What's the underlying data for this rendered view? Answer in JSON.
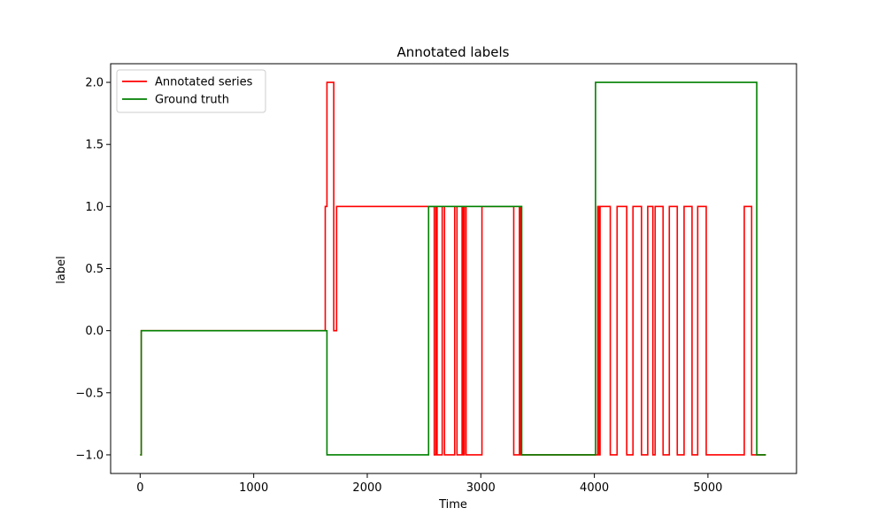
{
  "chart_data": {
    "type": "line",
    "step": true,
    "title": "Annotated labels",
    "xlabel": "Time",
    "ylabel": "label",
    "xlim": [
      -260,
      5780
    ],
    "ylim": [
      -1.15,
      2.15
    ],
    "xticks": [
      0,
      1000,
      2000,
      3000,
      4000,
      5000
    ],
    "xtick_labels": [
      "0",
      "1000",
      "2000",
      "3000",
      "4000",
      "5000"
    ],
    "yticks": [
      -1.0,
      -0.5,
      0.0,
      0.5,
      1.0,
      1.5,
      2.0
    ],
    "ytick_labels": [
      "−1.0",
      "−0.5",
      "0.0",
      "0.5",
      "1.0",
      "1.5",
      "2.0"
    ],
    "grid": false,
    "legend_position": "top-left",
    "series": [
      {
        "name": "Annotated series",
        "color": "#ff0000",
        "points": [
          [
            0,
            -1
          ],
          [
            10,
            -1
          ],
          [
            10,
            0
          ],
          [
            1630,
            0
          ],
          [
            1630,
            1
          ],
          [
            1645,
            1
          ],
          [
            1645,
            2
          ],
          [
            1705,
            2
          ],
          [
            1705,
            0
          ],
          [
            1730,
            0
          ],
          [
            1730,
            1
          ],
          [
            2590,
            1
          ],
          [
            2590,
            -1
          ],
          [
            2605,
            -1
          ],
          [
            2605,
            1
          ],
          [
            2615,
            1
          ],
          [
            2615,
            -1
          ],
          [
            2660,
            -1
          ],
          [
            2660,
            1
          ],
          [
            2680,
            1
          ],
          [
            2680,
            -1
          ],
          [
            2770,
            -1
          ],
          [
            2770,
            1
          ],
          [
            2790,
            1
          ],
          [
            2790,
            -1
          ],
          [
            2835,
            -1
          ],
          [
            2835,
            1
          ],
          [
            2845,
            1
          ],
          [
            2845,
            -1
          ],
          [
            2855,
            -1
          ],
          [
            2855,
            1
          ],
          [
            2870,
            1
          ],
          [
            2870,
            -1
          ],
          [
            3010,
            -1
          ],
          [
            3010,
            1
          ],
          [
            3290,
            1
          ],
          [
            3290,
            -1
          ],
          [
            3340,
            -1
          ],
          [
            3340,
            1
          ],
          [
            3350,
            1
          ],
          [
            3350,
            -1
          ],
          [
            4030,
            -1
          ],
          [
            4030,
            1
          ],
          [
            4040,
            1
          ],
          [
            4040,
            -1
          ],
          [
            4050,
            -1
          ],
          [
            4050,
            1
          ],
          [
            4140,
            1
          ],
          [
            4140,
            -1
          ],
          [
            4200,
            -1
          ],
          [
            4200,
            1
          ],
          [
            4285,
            1
          ],
          [
            4285,
            -1
          ],
          [
            4340,
            -1
          ],
          [
            4340,
            1
          ],
          [
            4415,
            1
          ],
          [
            4415,
            -1
          ],
          [
            4470,
            -1
          ],
          [
            4470,
            1
          ],
          [
            4515,
            1
          ],
          [
            4515,
            -1
          ],
          [
            4535,
            -1
          ],
          [
            4535,
            1
          ],
          [
            4605,
            1
          ],
          [
            4605,
            -1
          ],
          [
            4660,
            -1
          ],
          [
            4660,
            1
          ],
          [
            4730,
            1
          ],
          [
            4730,
            -1
          ],
          [
            4790,
            -1
          ],
          [
            4790,
            1
          ],
          [
            4860,
            1
          ],
          [
            4860,
            -1
          ],
          [
            4910,
            -1
          ],
          [
            4910,
            1
          ],
          [
            4985,
            1
          ],
          [
            4985,
            -1
          ],
          [
            5320,
            -1
          ],
          [
            5320,
            1
          ],
          [
            5385,
            1
          ],
          [
            5385,
            -1
          ],
          [
            5510,
            -1
          ]
        ]
      },
      {
        "name": "Ground truth",
        "color": "#008000",
        "points": [
          [
            0,
            -1
          ],
          [
            10,
            -1
          ],
          [
            10,
            0
          ],
          [
            1645,
            0
          ],
          [
            1645,
            -1
          ],
          [
            2540,
            -1
          ],
          [
            2540,
            1
          ],
          [
            3360,
            1
          ],
          [
            3360,
            -1
          ],
          [
            4010,
            -1
          ],
          [
            4010,
            2
          ],
          [
            5430,
            2
          ],
          [
            5430,
            -1
          ],
          [
            5510,
            -1
          ]
        ]
      }
    ]
  }
}
